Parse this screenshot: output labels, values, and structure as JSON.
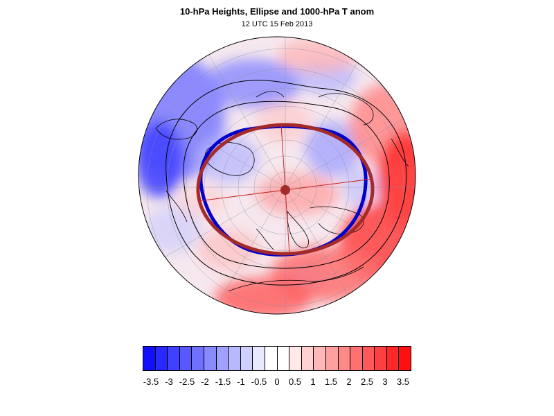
{
  "figure": {
    "title": "10-hPa Heights, Ellipse and 1000-hPa T anom",
    "subtitle": "12 UTC 15 Feb 2013"
  },
  "map": {
    "projection": "north-polar stereographic",
    "grid": true,
    "elements": [
      "temperature-anomaly-shading",
      "coastlines",
      "10-hPa-height-contours",
      "vortex-ellipse",
      "ellipse-center-marker"
    ],
    "colors": {
      "height_contour_highlight": "#0000cc",
      "ellipse": "#a52a2a",
      "contour": "#000000"
    }
  },
  "colorbar": {
    "labels": [
      "-3.5",
      "-3",
      "-2.5",
      "-2",
      "-1.5",
      "-1",
      "-0.5",
      "0",
      "0.5",
      "1",
      "1.5",
      "2",
      "2.5",
      "3",
      "3.5"
    ],
    "colors": [
      "#1010ff",
      "#2828ff",
      "#4040ff",
      "#5858ff",
      "#7070ff",
      "#8888ff",
      "#a0a0ff",
      "#b8b8ff",
      "#d0d0ff",
      "#e8e8ff",
      "#ffffff",
      "#ffffff",
      "#ffe8e8",
      "#ffd0d0",
      "#ffb8b8",
      "#ffa0a0",
      "#ff8888",
      "#ff7070",
      "#ff5858",
      "#ff4040",
      "#ff2828",
      "#ff1010"
    ]
  }
}
